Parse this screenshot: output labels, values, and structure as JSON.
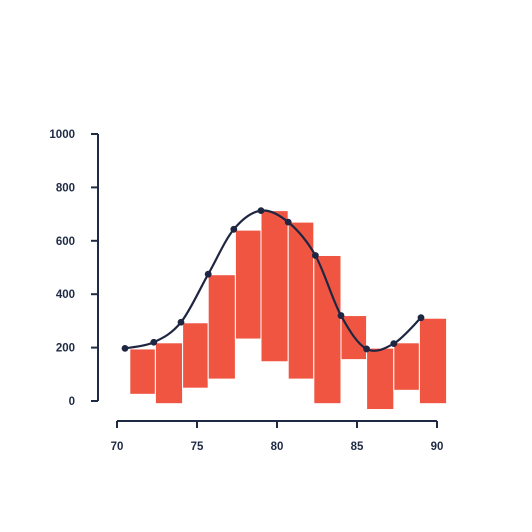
{
  "chart_data": {
    "type": "bar",
    "title": "",
    "xlabel": "",
    "ylabel": "",
    "xlim": [
      70,
      90
    ],
    "ylim": [
      0,
      1000
    ],
    "x_ticks": [
      "70",
      "75",
      "80",
      "85",
      "90"
    ],
    "y_ticks": [
      "0",
      "200",
      "400",
      "600",
      "800",
      "1000"
    ],
    "grid": false,
    "legend": "none",
    "bar_color": "#f05541",
    "line_color": "#1e2642",
    "axis_color": "#1f2a44",
    "bars": [
      {
        "x_start": 70.8,
        "x_end": 72.4,
        "low": 25,
        "high": 195
      },
      {
        "x_start": 72.4,
        "x_end": 74.1,
        "low": -10,
        "high": 218
      },
      {
        "x_start": 74.1,
        "x_end": 75.7,
        "low": 48,
        "high": 293
      },
      {
        "x_start": 75.7,
        "x_end": 77.4,
        "low": 82,
        "high": 473
      },
      {
        "x_start": 77.4,
        "x_end": 79.0,
        "low": 232,
        "high": 640
      },
      {
        "x_start": 79.0,
        "x_end": 80.7,
        "low": 147,
        "high": 713
      },
      {
        "x_start": 80.7,
        "x_end": 82.3,
        "low": 82,
        "high": 670
      },
      {
        "x_start": 82.3,
        "x_end": 84.0,
        "low": -10,
        "high": 545
      },
      {
        "x_start": 84.0,
        "x_end": 85.6,
        "low": 155,
        "high": 320
      },
      {
        "x_start": 85.6,
        "x_end": 87.3,
        "low": -32,
        "high": 198
      },
      {
        "x_start": 87.3,
        "x_end": 88.9,
        "low": 40,
        "high": 218
      },
      {
        "x_start": 88.9,
        "x_end": 90.6,
        "low": -10,
        "high": 310
      }
    ],
    "line": {
      "x": [
        70.5,
        72.3,
        74.0,
        75.7,
        77.3,
        79.0,
        80.7,
        82.4,
        84.0,
        85.6,
        87.3,
        89.0
      ],
      "y": [
        197,
        220,
        295,
        475,
        643,
        713,
        670,
        545,
        320,
        195,
        215,
        312
      ]
    }
  }
}
